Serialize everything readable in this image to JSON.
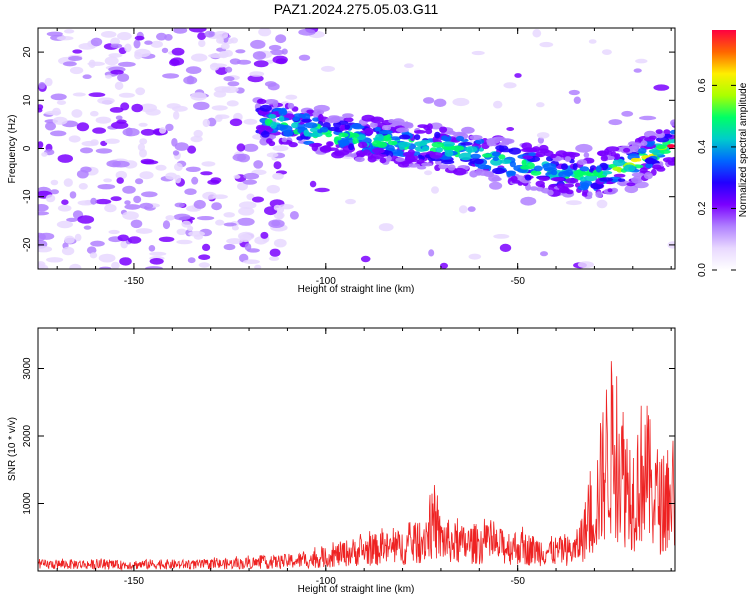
{
  "title": "PAZ1.2024.275.05.03.G11",
  "colors": {
    "snr_line": "#ee2222",
    "frame": "#000000",
    "colormap": [
      "#ffffff",
      "#e8d8ff",
      "#b080ff",
      "#7a00ff",
      "#2200ff",
      "#0066ff",
      "#00cccc",
      "#00ff66",
      "#aaff00",
      "#ffee00",
      "#ff6600",
      "#ff0040"
    ]
  },
  "chart_data": [
    {
      "type": "heatmap",
      "xlabel": "Height of straight line (km)",
      "ylabel": "Frequency (Hz)",
      "xlim": [
        -175,
        -9
      ],
      "ylim": [
        -25,
        25
      ],
      "xticks": [
        -150,
        -100,
        -50
      ],
      "yticks": [
        -20,
        -10,
        0,
        10,
        20
      ],
      "colorbar": {
        "label": "Normalized spectral amplitude",
        "range": [
          0.0,
          0.78
        ],
        "ticks": [
          0.0,
          0.2,
          0.4,
          0.6
        ]
      },
      "ridge": {
        "x": [
          -118,
          -110,
          -100,
          -90,
          -80,
          -70,
          -60,
          -50,
          -40,
          -30,
          -20,
          -10
        ],
        "y": [
          6,
          5,
          3,
          2,
          1,
          0,
          -1,
          -3,
          -5,
          -6,
          -3,
          1
        ]
      }
    },
    {
      "type": "line",
      "xlabel": "Height of straight line (km)",
      "ylabel": "SNR (10 * v/v)",
      "xlim": [
        -175,
        -9
      ],
      "ylim": [
        0,
        3600
      ],
      "xticks": [
        -150,
        -100,
        -50
      ],
      "yticks": [
        1000,
        2000,
        3000
      ],
      "series": [
        {
          "x": [
            -175,
            -165,
            -155,
            -145,
            -135,
            -125,
            -115,
            -110,
            -105,
            -100,
            -95,
            -90,
            -85,
            -80,
            -75,
            -72,
            -70,
            -65,
            -60,
            -55,
            -50,
            -45,
            -40,
            -35,
            -30,
            -27,
            -25,
            -22,
            -20,
            -17,
            -15,
            -12,
            -10
          ],
          "y": [
            150,
            160,
            140,
            160,
            150,
            170,
            200,
            230,
            260,
            320,
            420,
            480,
            520,
            560,
            700,
            1100,
            750,
            620,
            650,
            580,
            560,
            480,
            470,
            480,
            1400,
            2600,
            3000,
            2200,
            1800,
            2500,
            1900,
            1500,
            1700
          ]
        }
      ]
    }
  ]
}
